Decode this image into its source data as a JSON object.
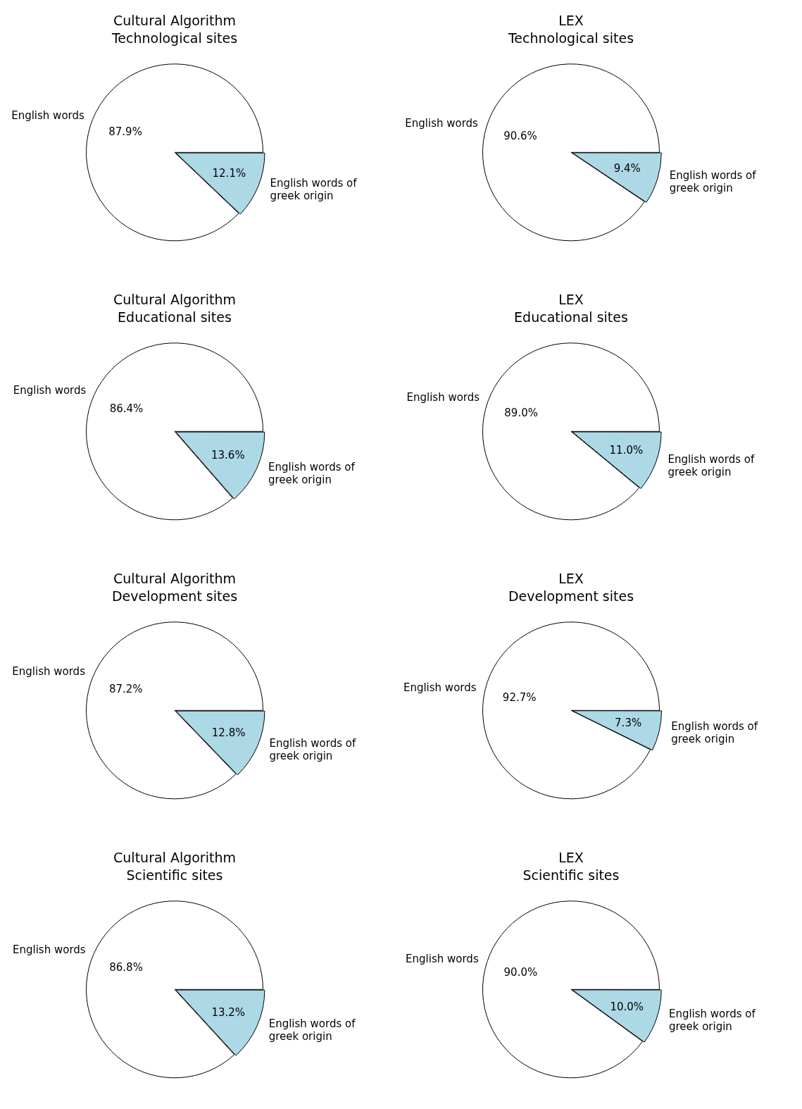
{
  "chart_data": [
    {
      "type": "pie",
      "title": "Cultural Algorithm",
      "subtitle": "Technological sites",
      "categories": [
        "English words",
        "English words of greek origin"
      ],
      "values": [
        87.9,
        12.1
      ],
      "value_labels": [
        "87.9%",
        "12.1%"
      ],
      "colors": [
        "#ffffff",
        "#add8e6"
      ],
      "legend": false
    },
    {
      "type": "pie",
      "title": "LEX",
      "subtitle": "Technological sites",
      "categories": [
        "English words",
        "English words of greek origin"
      ],
      "values": [
        90.6,
        9.4
      ],
      "value_labels": [
        "90.6%",
        "9.4%"
      ],
      "colors": [
        "#ffffff",
        "#add8e6"
      ],
      "legend": false
    },
    {
      "type": "pie",
      "title": "Cultural Algorithm",
      "subtitle": "Educational sites",
      "categories": [
        "English words",
        "English words of greek origin"
      ],
      "values": [
        86.4,
        13.6
      ],
      "value_labels": [
        "86.4%",
        "13.6%"
      ],
      "colors": [
        "#ffffff",
        "#add8e6"
      ],
      "legend": false
    },
    {
      "type": "pie",
      "title": "LEX",
      "subtitle": "Educational sites",
      "categories": [
        "English words",
        "English words of greek origin"
      ],
      "values": [
        89.0,
        11.0
      ],
      "value_labels": [
        "89.0%",
        "11.0%"
      ],
      "colors": [
        "#ffffff",
        "#add8e6"
      ],
      "legend": false
    },
    {
      "type": "pie",
      "title": "Cultural Algorithm",
      "subtitle": "Development sites",
      "categories": [
        "English words",
        "English words of greek origin"
      ],
      "values": [
        87.2,
        12.8
      ],
      "value_labels": [
        "87.2%",
        "12.8%"
      ],
      "colors": [
        "#ffffff",
        "#add8e6"
      ],
      "legend": false
    },
    {
      "type": "pie",
      "title": "LEX",
      "subtitle": "Development sites",
      "categories": [
        "English words",
        "English words of greek origin"
      ],
      "values": [
        92.7,
        7.3
      ],
      "value_labels": [
        "92.7%",
        "7.3%"
      ],
      "colors": [
        "#ffffff",
        "#add8e6"
      ],
      "legend": false
    },
    {
      "type": "pie",
      "title": "Cultural Algorithm",
      "subtitle": "Scientific sites",
      "categories": [
        "English words",
        "English words of greek origin"
      ],
      "values": [
        86.8,
        13.2
      ],
      "value_labels": [
        "86.8%",
        "13.2%"
      ],
      "colors": [
        "#ffffff",
        "#add8e6"
      ],
      "legend": false
    },
    {
      "type": "pie",
      "title": "LEX",
      "subtitle": "Scientific sites",
      "categories": [
        "English words",
        "English words of greek origin"
      ],
      "values": [
        90.0,
        10.0
      ],
      "value_labels": [
        "90.0%",
        "10.0%"
      ],
      "colors": [
        "#ffffff",
        "#add8e6"
      ],
      "legend": false
    }
  ]
}
